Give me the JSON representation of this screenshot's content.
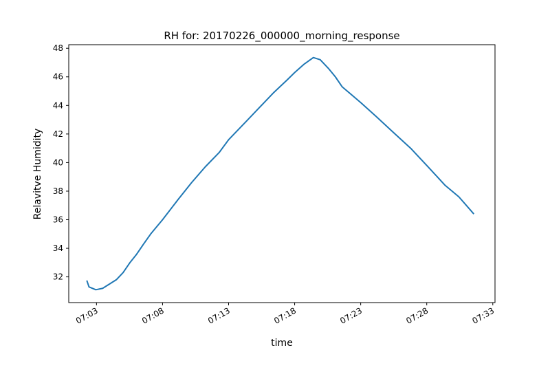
{
  "chart_data": {
    "type": "line",
    "title": "RH for: 20170226_000000_morning_response",
    "x_label": "time",
    "y_label": "Relavitve Humidity",
    "x": [
      "07:02:16",
      "07:02:26",
      "07:02:57",
      "07:03:28",
      "07:03:59",
      "07:04:30",
      "07:05:01",
      "07:05:32",
      "07:06:03",
      "07:06:34",
      "07:07:06",
      "07:08:00",
      "07:09:10",
      "07:10:12",
      "07:11:14",
      "07:12:17",
      "07:13:00",
      "07:14:21",
      "07:15:23",
      "07:16:25",
      "07:17:27",
      "07:18:00",
      "07:18:44",
      "07:19:25",
      "07:19:56",
      "07:20:33",
      "07:21:05",
      "07:21:36",
      "07:23:00",
      "07:24:12",
      "07:25:29",
      "07:26:47",
      "07:28:00",
      "07:29:24",
      "07:30:26",
      "07:31:34"
    ],
    "series": [
      {
        "name": "RH",
        "color": "#1f77b4",
        "values": [
          31.75,
          31.3,
          31.1,
          31.2,
          31.5,
          31.8,
          32.3,
          33.0,
          33.6,
          34.3,
          35.0,
          36.0,
          37.4,
          38.6,
          39.7,
          40.7,
          41.6,
          42.9,
          43.9,
          44.9,
          45.8,
          46.3,
          46.9,
          47.35,
          47.2,
          46.6,
          46.0,
          45.3,
          44.2,
          43.2,
          42.1,
          41.0,
          39.8,
          38.4,
          37.6,
          36.4
        ]
      }
    ],
    "xlim": [
      "07:00:54",
      "07:33:10"
    ],
    "xticks": [
      "07:03",
      "07:08",
      "07:13",
      "07:18",
      "07:23",
      "07:28",
      "07:33"
    ],
    "ylim": [
      30.2,
      48.25
    ],
    "yticks": [
      32,
      34,
      36,
      38,
      40,
      42,
      44,
      46,
      48
    ]
  }
}
